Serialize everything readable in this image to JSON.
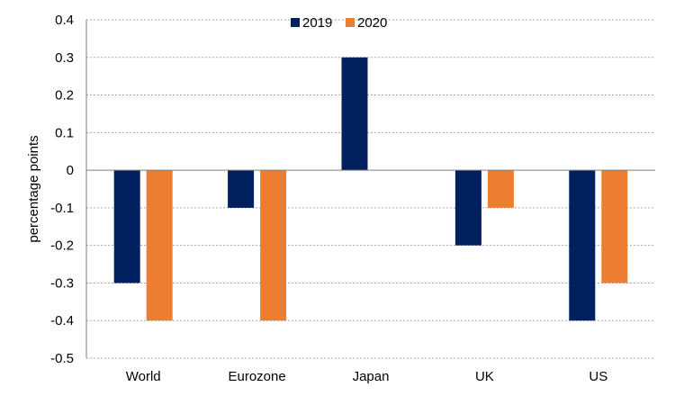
{
  "chart_data": {
    "type": "bar",
    "title": "",
    "xlabel": "",
    "ylabel": "percentage points",
    "categories": [
      "World",
      "Eurozone",
      "Japan",
      "UK",
      "US"
    ],
    "series": [
      {
        "name": "2019",
        "color": "#002060",
        "values": [
          -0.3,
          -0.1,
          0.3,
          -0.2,
          -0.4
        ]
      },
      {
        "name": "2020",
        "color": "#ED7D31",
        "values": [
          -0.4,
          -0.4,
          null,
          -0.1,
          -0.3
        ]
      }
    ],
    "ylim": [
      -0.5,
      0.4
    ],
    "yticks": [
      0.4,
      0.3,
      0.2,
      0.1,
      0,
      -0.1,
      -0.2,
      -0.3,
      -0.4,
      -0.5
    ],
    "ytick_labels": [
      "0.4",
      "0.3",
      "0.2",
      "0.1",
      "0",
      "-0.1",
      "-0.2",
      "-0.3",
      "-0.4",
      "-0.5"
    ],
    "grid": true,
    "legend": {
      "position": "top",
      "entries": [
        "2019",
        "2020"
      ]
    }
  }
}
